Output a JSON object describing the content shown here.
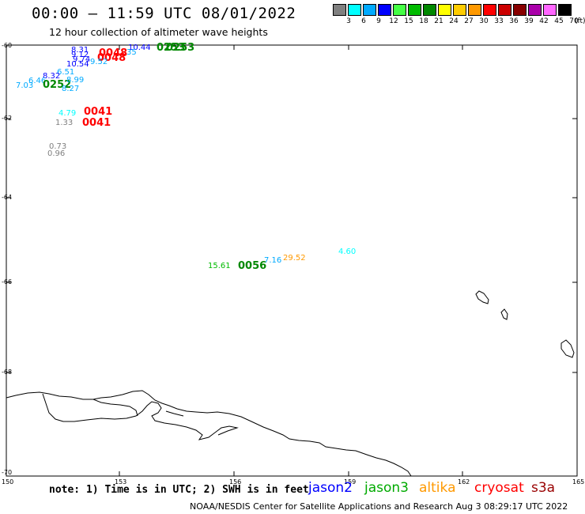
{
  "header": {
    "title": "00:00 – 11:59 UTC 08/01/2022",
    "subtitle": "12 hour collection of altimeter wave heights"
  },
  "colorbar": {
    "unit": "(ft)",
    "swatches": [
      {
        "label": "3",
        "color": "#808080"
      },
      {
        "label": "6",
        "color": "#00ffff"
      },
      {
        "label": "9",
        "color": "#00aaff"
      },
      {
        "label": "12",
        "color": "#0000ff"
      },
      {
        "label": "15",
        "color": "#44ff44"
      },
      {
        "label": "18",
        "color": "#00bb00"
      },
      {
        "label": "21",
        "color": "#008800"
      },
      {
        "label": "24",
        "color": "#ffff00"
      },
      {
        "label": "27",
        "color": "#ffcc00"
      },
      {
        "label": "30",
        "color": "#ff9900"
      },
      {
        "label": "33",
        "color": "#ff0000"
      },
      {
        "label": "36",
        "color": "#cc0000"
      },
      {
        "label": "39",
        "color": "#880000"
      },
      {
        "label": "42",
        "color": "#aa00aa"
      },
      {
        "label": "45",
        "color": "#ff66ff"
      },
      {
        "label": "70",
        "color": "#000000"
      }
    ]
  },
  "axes": {
    "lat_labels": [
      "-60",
      "-62",
      "-64",
      "-66",
      "-68",
      "-70"
    ],
    "lon_labels": [
      "150",
      "153",
      "156",
      "159",
      "162",
      "165"
    ]
  },
  "observations": [
    {
      "text": "8.31",
      "color": "#0000ff"
    },
    {
      "text": "9.12",
      "color": "#0000ff"
    },
    {
      "text": "9.74",
      "color": "#0000ff"
    },
    {
      "text": "0048",
      "color": "#ff0000"
    },
    {
      "text": "0048",
      "color": "#ff0000"
    },
    {
      "text": "10.44",
      "color": "#0000ff"
    },
    {
      "text": "0253",
      "color": "#008800"
    },
    {
      "text": "0253",
      "color": "#008800"
    },
    {
      "text": "35",
      "color": "#00aaff"
    },
    {
      "text": "10.54",
      "color": "#0000ff"
    },
    {
      "text": "9.52",
      "color": "#00aaff"
    },
    {
      "text": "6.51",
      "color": "#00aaff"
    },
    {
      "text": "8.32",
      "color": "#0000ff"
    },
    {
      "text": "7.03",
      "color": "#00aaff"
    },
    {
      "text": "6.46",
      "color": "#00aaff"
    },
    {
      "text": "0252",
      "color": "#008800"
    },
    {
      "text": "8.99",
      "color": "#00aaff"
    },
    {
      "text": "8.27",
      "color": "#00aaff"
    },
    {
      "text": "4.79",
      "color": "#00ffff"
    },
    {
      "text": "0041",
      "color": "#ff0000"
    },
    {
      "text": "1.33",
      "color": "#808080"
    },
    {
      "text": "0041",
      "color": "#ff0000"
    },
    {
      "text": "0.73",
      "color": "#808080"
    },
    {
      "text": "0.96",
      "color": "#808080"
    },
    {
      "text": "15.61",
      "color": "#00bb00"
    },
    {
      "text": "0056",
      "color": "#008800"
    },
    {
      "text": "7.16",
      "color": "#00aaff"
    },
    {
      "text": "29.52",
      "color": "#ff9900"
    },
    {
      "text": "4.60",
      "color": "#00ffff"
    }
  ],
  "footer": {
    "note": "note:  1) Time is in UTC;  2) SWH is in feet",
    "credit": "NOAA/NESDIS Center for Satellite Applications and Research    Aug  3 08:29:17 UTC 2022"
  },
  "legend": [
    {
      "label": "jason2",
      "color": "#0000ff"
    },
    {
      "label": "jason3",
      "color": "#00aa00"
    },
    {
      "label": "altika",
      "color": "#ff9900"
    },
    {
      "label": "cryosat",
      "color": "#ff0000"
    },
    {
      "label": "s3a",
      "color": "#990000"
    }
  ]
}
